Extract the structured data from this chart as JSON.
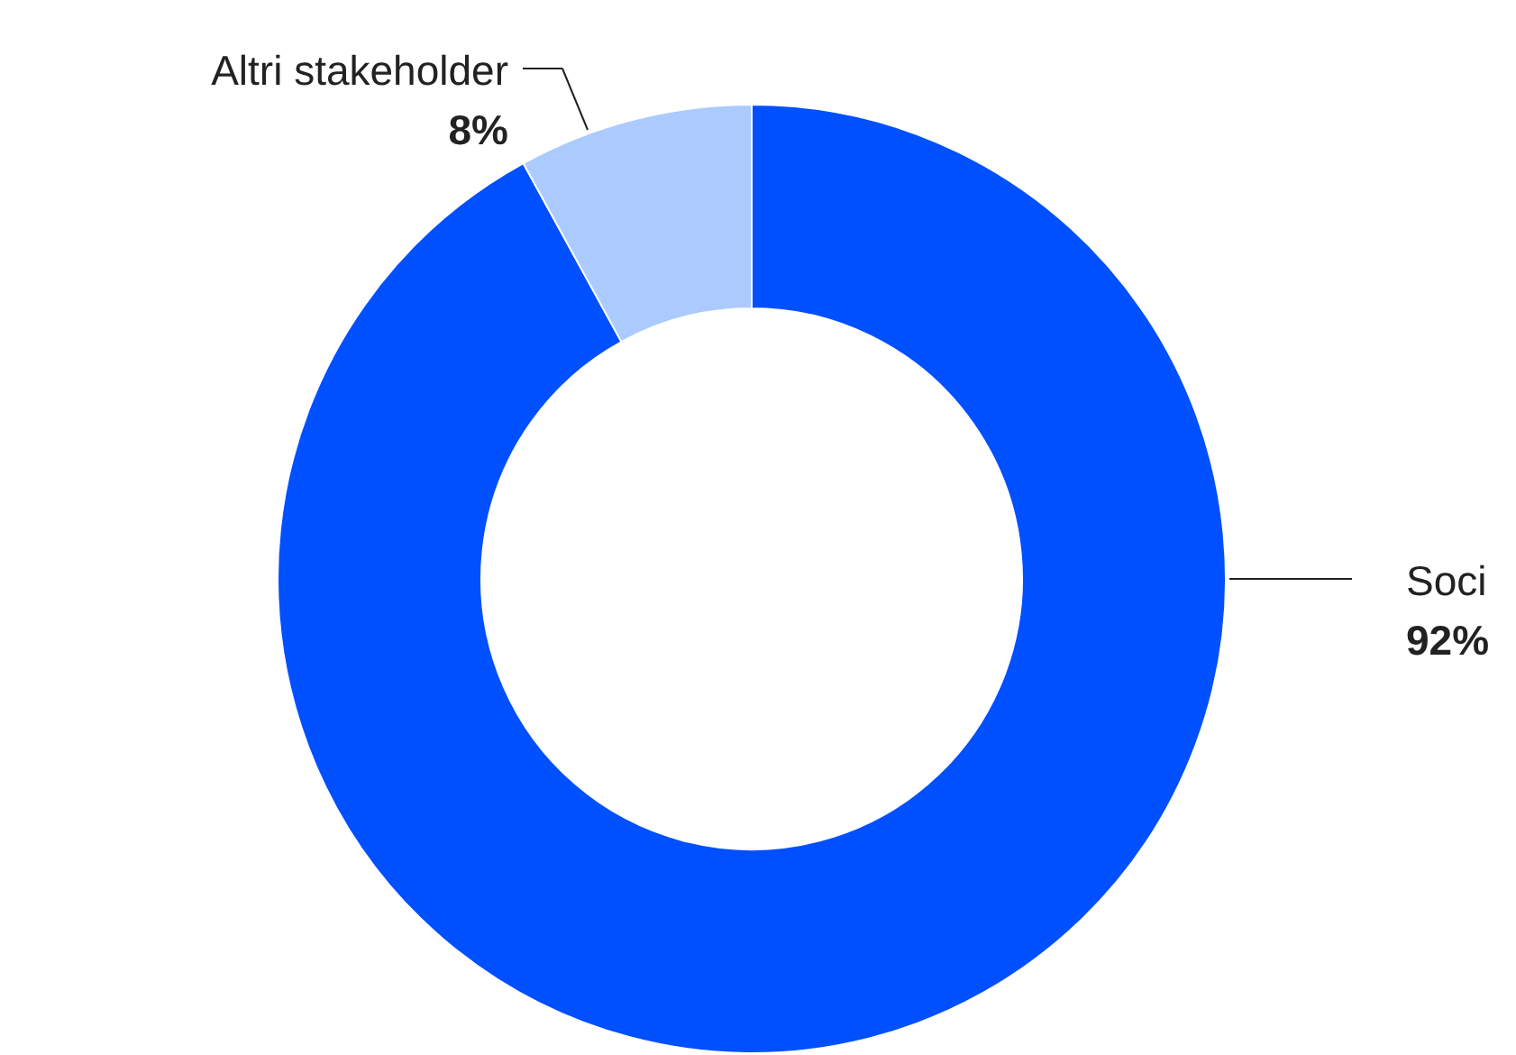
{
  "chart_data": {
    "type": "donut",
    "categories": [
      "Soci",
      "Altri stakeholder"
    ],
    "values": [
      92,
      8
    ],
    "colors": [
      "#0050ff",
      "#abcbff"
    ],
    "value_labels": [
      "92%",
      "8%"
    ]
  }
}
